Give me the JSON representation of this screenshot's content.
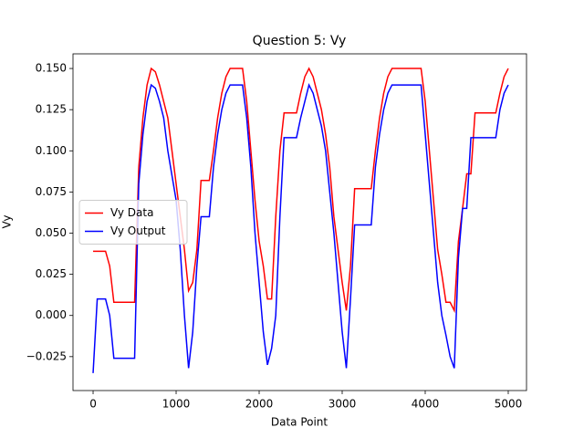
{
  "chart_data": {
    "type": "line",
    "title": "Question 5: Vy",
    "x_label": "Data Point",
    "y_label": "Vy",
    "x": [
      0,
      50,
      100,
      150,
      200,
      250,
      300,
      350,
      400,
      450,
      500,
      550,
      600,
      650,
      700,
      750,
      800,
      850,
      900,
      950,
      1000,
      1050,
      1100,
      1150,
      1200,
      1250,
      1300,
      1350,
      1400,
      1450,
      1500,
      1550,
      1600,
      1650,
      1700,
      1750,
      1800,
      1850,
      1900,
      1950,
      2000,
      2050,
      2100,
      2150,
      2200,
      2250,
      2300,
      2350,
      2400,
      2450,
      2500,
      2550,
      2600,
      2650,
      2700,
      2750,
      2800,
      2850,
      2900,
      2950,
      3000,
      3050,
      3100,
      3150,
      3200,
      3250,
      3300,
      3350,
      3400,
      3450,
      3500,
      3550,
      3600,
      3650,
      3700,
      3750,
      3800,
      3850,
      3900,
      3950,
      4000,
      4050,
      4100,
      4150,
      4200,
      4250,
      4300,
      4350,
      4400,
      4450,
      4500,
      4550,
      4600,
      4650,
      4700,
      4750,
      4800,
      4850,
      4900,
      4950,
      5000
    ],
    "series": [
      {
        "name": "Vy Data",
        "color": "#ff0000",
        "values": [
          0.039,
          0.039,
          0.039,
          0.039,
          0.03,
          0.008,
          0.008,
          0.008,
          0.008,
          0.008,
          0.008,
          0.09,
          0.12,
          0.14,
          0.15,
          0.148,
          0.14,
          0.13,
          0.12,
          0.1,
          0.08,
          0.06,
          0.04,
          0.015,
          0.02,
          0.04,
          0.082,
          0.082,
          0.082,
          0.1,
          0.12,
          0.135,
          0.145,
          0.15,
          0.15,
          0.15,
          0.15,
          0.13,
          0.1,
          0.07,
          0.045,
          0.03,
          0.01,
          0.01,
          0.06,
          0.1,
          0.123,
          0.123,
          0.123,
          0.123,
          0.135,
          0.145,
          0.15,
          0.145,
          0.135,
          0.125,
          0.11,
          0.09,
          0.06,
          0.04,
          0.02,
          0.003,
          0.03,
          0.077,
          0.077,
          0.077,
          0.077,
          0.077,
          0.1,
          0.12,
          0.135,
          0.145,
          0.15,
          0.15,
          0.15,
          0.15,
          0.15,
          0.15,
          0.15,
          0.15,
          0.13,
          0.1,
          0.07,
          0.04,
          0.025,
          0.008,
          0.008,
          0.003,
          0.045,
          0.065,
          0.086,
          0.086,
          0.123,
          0.123,
          0.123,
          0.123,
          0.123,
          0.123,
          0.135,
          0.145,
          0.15
        ]
      },
      {
        "name": "Vy Output",
        "color": "#0000ff",
        "values": [
          -0.035,
          0.01,
          0.01,
          0.01,
          0,
          -0.026,
          -0.026,
          -0.026,
          -0.026,
          -0.026,
          -0.026,
          0.08,
          0.11,
          0.13,
          0.14,
          0.138,
          0.13,
          0.12,
          0.1,
          0.085,
          0.07,
          0.04,
          0,
          -0.032,
          -0.01,
          0.03,
          0.06,
          0.06,
          0.06,
          0.09,
          0.11,
          0.125,
          0.135,
          0.14,
          0.14,
          0.14,
          0.14,
          0.12,
          0.09,
          0.05,
          0.02,
          -0.01,
          -0.03,
          -0.02,
          0,
          0.06,
          0.108,
          0.108,
          0.108,
          0.108,
          0.12,
          0.13,
          0.14,
          0.135,
          0.125,
          0.115,
          0.1,
          0.075,
          0.05,
          0.02,
          -0.01,
          -0.032,
          0.01,
          0.055,
          0.055,
          0.055,
          0.055,
          0.055,
          0.09,
          0.11,
          0.125,
          0.135,
          0.14,
          0.14,
          0.14,
          0.14,
          0.14,
          0.14,
          0.14,
          0.14,
          0.11,
          0.08,
          0.05,
          0.02,
          0,
          -0.012,
          -0.025,
          -0.032,
          0.035,
          0.065,
          0.065,
          0.108,
          0.108,
          0.108,
          0.108,
          0.108,
          0.108,
          0.108,
          0.125,
          0.135,
          0.14
        ]
      }
    ],
    "xlim": [
      -242,
      5220
    ],
    "ylim": [
      -0.0456,
      0.1589
    ],
    "xticks": [
      0,
      1000,
      2000,
      3000,
      4000,
      5000
    ],
    "yticks": [
      {
        "value": -0.025,
        "label": "−0.025"
      },
      {
        "value": 0,
        "label": "0.000"
      },
      {
        "value": 0.025,
        "label": "0.025"
      },
      {
        "value": 0.05,
        "label": "0.050"
      },
      {
        "value": 0.075,
        "label": "0.075"
      },
      {
        "value": 0.1,
        "label": "0.100"
      },
      {
        "value": 0.125,
        "label": "0.125"
      },
      {
        "value": 0.15,
        "label": "0.150"
      }
    ],
    "grid": false,
    "legend": "center left"
  }
}
